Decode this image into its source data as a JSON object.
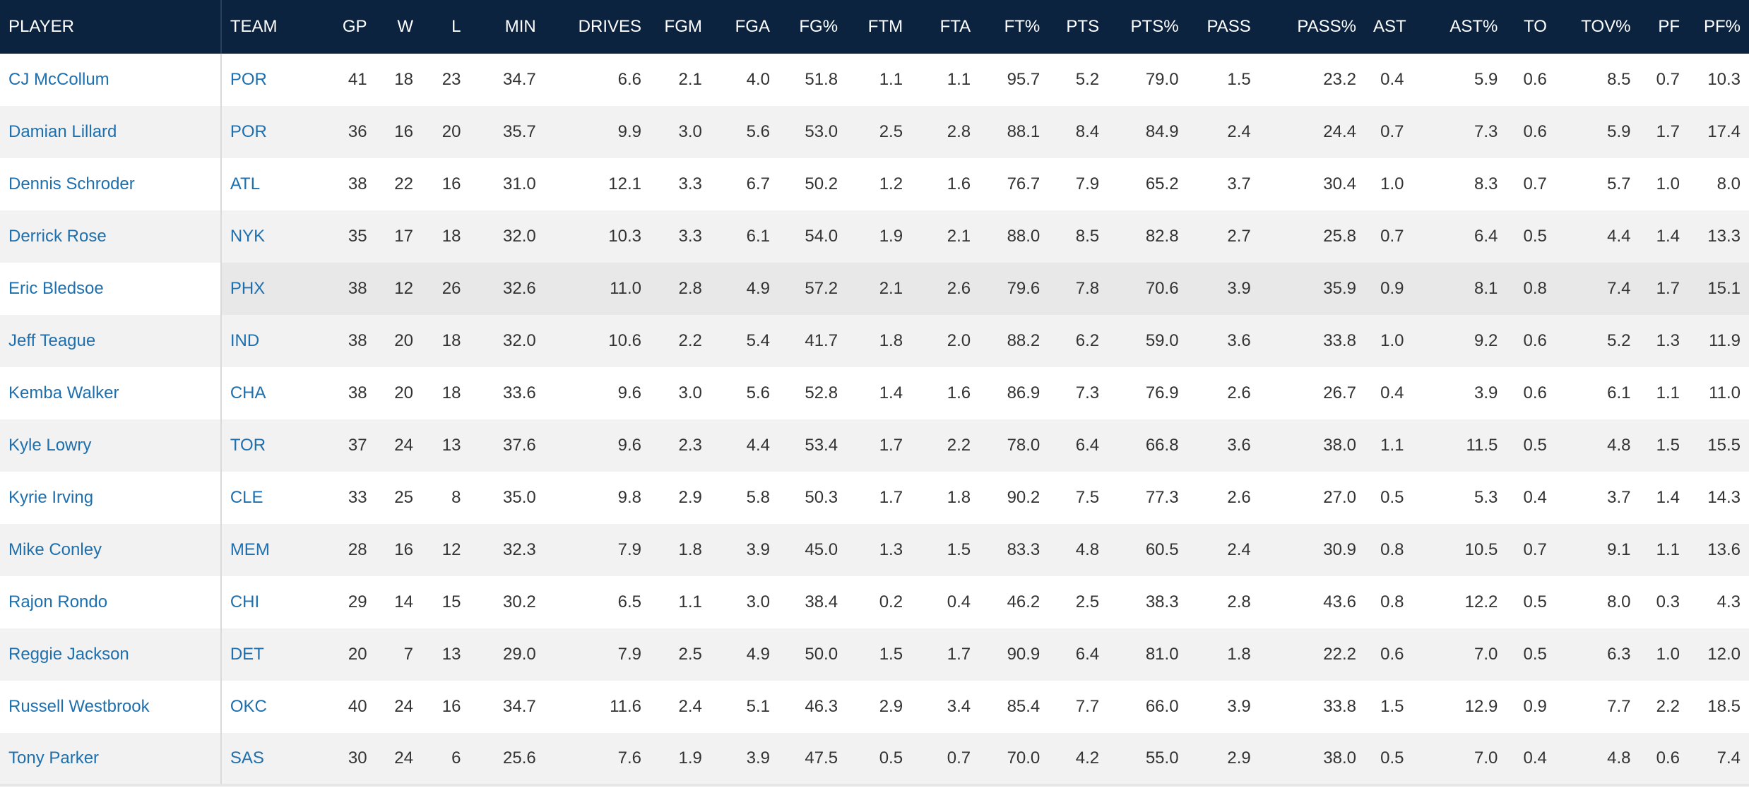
{
  "table": {
    "columns": [
      "PLAYER",
      "TEAM",
      "GP",
      "W",
      "L",
      "MIN",
      "DRIVES",
      "FGM",
      "FGA",
      "FG%",
      "FTM",
      "FTA",
      "FT%",
      "PTS",
      "PTS%",
      "PASS",
      "PASS%",
      "AST",
      "AST%",
      "TO",
      "TOV%",
      "PF",
      "PF%"
    ],
    "rows": [
      [
        "CJ McCollum",
        "POR",
        "41",
        "18",
        "23",
        "34.7",
        "6.6",
        "2.1",
        "4.0",
        "51.8",
        "1.1",
        "1.1",
        "95.7",
        "5.2",
        "79.0",
        "1.5",
        "23.2",
        "0.4",
        "5.9",
        "0.6",
        "8.5",
        "0.7",
        "10.3"
      ],
      [
        "Damian Lillard",
        "POR",
        "36",
        "16",
        "20",
        "35.7",
        "9.9",
        "3.0",
        "5.6",
        "53.0",
        "2.5",
        "2.8",
        "88.1",
        "8.4",
        "84.9",
        "2.4",
        "24.4",
        "0.7",
        "7.3",
        "0.6",
        "5.9",
        "1.7",
        "17.4"
      ],
      [
        "Dennis Schroder",
        "ATL",
        "38",
        "22",
        "16",
        "31.0",
        "12.1",
        "3.3",
        "6.7",
        "50.2",
        "1.2",
        "1.6",
        "76.7",
        "7.9",
        "65.2",
        "3.7",
        "30.4",
        "1.0",
        "8.3",
        "0.7",
        "5.7",
        "1.0",
        "8.0"
      ],
      [
        "Derrick Rose",
        "NYK",
        "35",
        "17",
        "18",
        "32.0",
        "10.3",
        "3.3",
        "6.1",
        "54.0",
        "1.9",
        "2.1",
        "88.0",
        "8.5",
        "82.8",
        "2.7",
        "25.8",
        "0.7",
        "6.4",
        "0.5",
        "4.4",
        "1.4",
        "13.3"
      ],
      [
        "Eric Bledsoe",
        "PHX",
        "38",
        "12",
        "26",
        "32.6",
        "11.0",
        "2.8",
        "4.9",
        "57.2",
        "2.1",
        "2.6",
        "79.6",
        "7.8",
        "70.6",
        "3.9",
        "35.9",
        "0.9",
        "8.1",
        "0.8",
        "7.4",
        "1.7",
        "15.1"
      ],
      [
        "Jeff Teague",
        "IND",
        "38",
        "20",
        "18",
        "32.0",
        "10.6",
        "2.2",
        "5.4",
        "41.7",
        "1.8",
        "2.0",
        "88.2",
        "6.2",
        "59.0",
        "3.6",
        "33.8",
        "1.0",
        "9.2",
        "0.6",
        "5.2",
        "1.3",
        "11.9"
      ],
      [
        "Kemba Walker",
        "CHA",
        "38",
        "20",
        "18",
        "33.6",
        "9.6",
        "3.0",
        "5.6",
        "52.8",
        "1.4",
        "1.6",
        "86.9",
        "7.3",
        "76.9",
        "2.6",
        "26.7",
        "0.4",
        "3.9",
        "0.6",
        "6.1",
        "1.1",
        "11.0"
      ],
      [
        "Kyle Lowry",
        "TOR",
        "37",
        "24",
        "13",
        "37.6",
        "9.6",
        "2.3",
        "4.4",
        "53.4",
        "1.7",
        "2.2",
        "78.0",
        "6.4",
        "66.8",
        "3.6",
        "38.0",
        "1.1",
        "11.5",
        "0.5",
        "4.8",
        "1.5",
        "15.5"
      ],
      [
        "Kyrie Irving",
        "CLE",
        "33",
        "25",
        "8",
        "35.0",
        "9.8",
        "2.9",
        "5.8",
        "50.3",
        "1.7",
        "1.8",
        "90.2",
        "7.5",
        "77.3",
        "2.6",
        "27.0",
        "0.5",
        "5.3",
        "0.4",
        "3.7",
        "1.4",
        "14.3"
      ],
      [
        "Mike Conley",
        "MEM",
        "28",
        "16",
        "12",
        "32.3",
        "7.9",
        "1.8",
        "3.9",
        "45.0",
        "1.3",
        "1.5",
        "83.3",
        "4.8",
        "60.5",
        "2.4",
        "30.9",
        "0.8",
        "10.5",
        "0.7",
        "9.1",
        "1.1",
        "13.6"
      ],
      [
        "Rajon Rondo",
        "CHI",
        "29",
        "14",
        "15",
        "30.2",
        "6.5",
        "1.1",
        "3.0",
        "38.4",
        "0.2",
        "0.4",
        "46.2",
        "2.5",
        "38.3",
        "2.8",
        "43.6",
        "0.8",
        "12.2",
        "0.5",
        "8.0",
        "0.3",
        "4.3"
      ],
      [
        "Reggie Jackson",
        "DET",
        "20",
        "7",
        "13",
        "29.0",
        "7.9",
        "2.5",
        "4.9",
        "50.0",
        "1.5",
        "1.7",
        "90.9",
        "6.4",
        "81.0",
        "1.8",
        "22.2",
        "0.6",
        "7.0",
        "0.5",
        "6.3",
        "1.0",
        "12.0"
      ],
      [
        "Russell Westbrook",
        "OKC",
        "40",
        "24",
        "16",
        "34.7",
        "11.6",
        "2.4",
        "5.1",
        "46.3",
        "2.9",
        "3.4",
        "85.4",
        "7.7",
        "66.0",
        "3.9",
        "33.8",
        "1.5",
        "12.9",
        "0.9",
        "7.7",
        "2.2",
        "18.5"
      ],
      [
        "Tony Parker",
        "SAS",
        "30",
        "24",
        "6",
        "25.6",
        "7.6",
        "1.9",
        "3.9",
        "47.5",
        "0.5",
        "0.7",
        "70.0",
        "4.2",
        "55.0",
        "2.9",
        "38.0",
        "0.5",
        "7.0",
        "0.4",
        "4.8",
        "0.6",
        "7.4"
      ]
    ]
  },
  "colors": {
    "header_bg": "#0c2340",
    "link": "#1d6fae",
    "stripe": "#f2f2f2",
    "hover_row": "#e8e8e8"
  }
}
